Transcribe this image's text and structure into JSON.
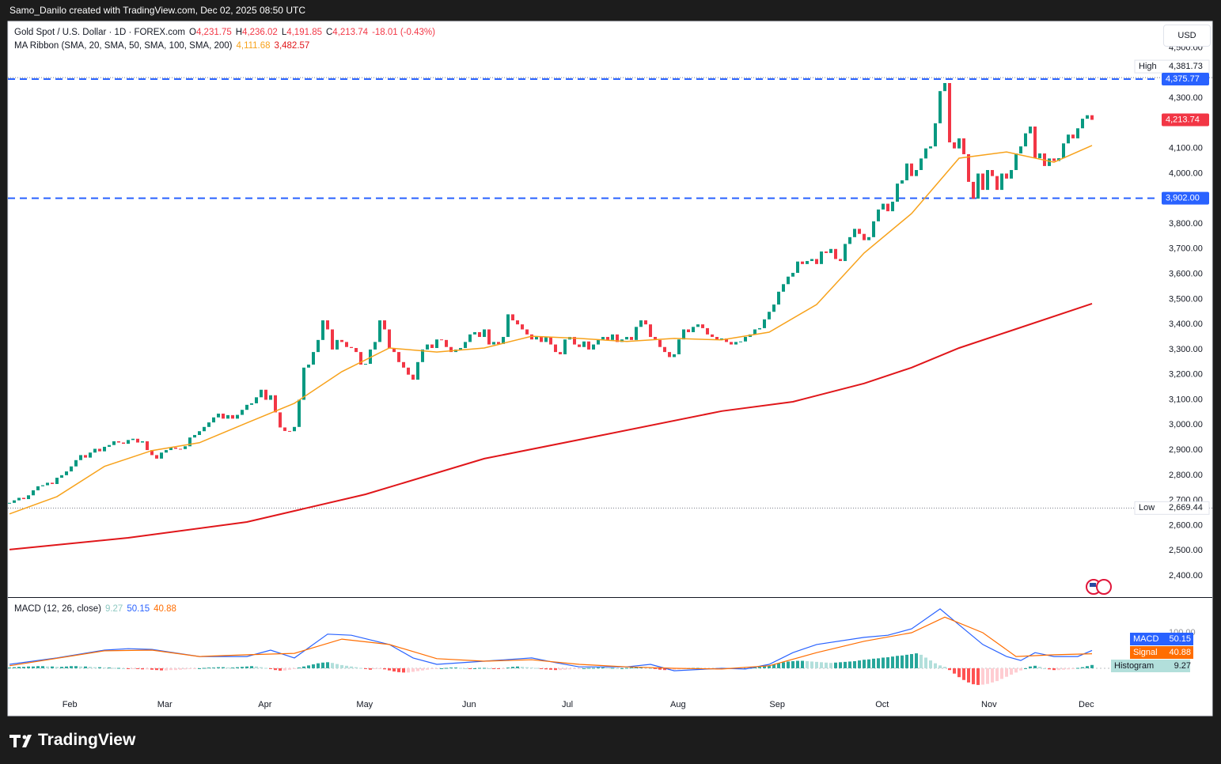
{
  "header": {
    "credit": "Samo_Danilo created with TradingView.com, Dec 02, 2025 08:50 UTC",
    "currency": "USD"
  },
  "footer": {
    "brand": "TradingView"
  },
  "chart_data": [
    {
      "type": "candlestick",
      "title": "Gold Spot / U.S. Dollar · 1D · FOREX.com",
      "ohlc": [
        {
          "key": "O",
          "label": "4,231.75"
        },
        {
          "key": "H",
          "label": "4,236.02"
        },
        {
          "key": "L",
          "label": "4,191.85"
        },
        {
          "key": "C",
          "label": "4,213.74"
        }
      ],
      "change": "-18.01 (-0.43%)",
      "up_color": "#089981",
      "down_color": "#f23645",
      "values": [
        2690,
        2700,
        2710,
        2705,
        2720,
        2740,
        2756,
        2760,
        2770,
        2765,
        2790,
        2800,
        2815,
        2835,
        2860,
        2880,
        2870,
        2890,
        2905,
        2895,
        2913,
        2920,
        2935,
        2930,
        2925,
        2940,
        2945,
        2930,
        2935,
        2900,
        2880,
        2866,
        2890,
        2900,
        2910,
        2905,
        2904,
        2915,
        2950,
        2960,
        2975,
        2992,
        3010,
        3030,
        3045,
        3025,
        3039,
        3025,
        3040,
        3060,
        3080,
        3086,
        3110,
        3140,
        3100,
        3118,
        3050,
        2990,
        2976,
        2975,
        2992,
        3100,
        3228,
        3240,
        3290,
        3338,
        3416,
        3380,
        3300,
        3338,
        3330,
        3310,
        3306,
        3290,
        3240,
        3243,
        3300,
        3330,
        3416,
        3380,
        3306,
        3290,
        3250,
        3228,
        3200,
        3180,
        3250,
        3300,
        3320,
        3306,
        3340,
        3338,
        3310,
        3290,
        3300,
        3306,
        3330,
        3360,
        3369,
        3350,
        3380,
        3320,
        3330,
        3322,
        3350,
        3440,
        3416,
        3400,
        3380,
        3360,
        3340,
        3353,
        3330,
        3350,
        3320,
        3290,
        3281,
        3340,
        3350,
        3320,
        3310,
        3332,
        3300,
        3320,
        3340,
        3350,
        3338,
        3360,
        3330,
        3340,
        3350,
        3338,
        3390,
        3416,
        3400,
        3350,
        3338,
        3310,
        3290,
        3270,
        3281,
        3340,
        3380,
        3369,
        3390,
        3400,
        3385,
        3360,
        3350,
        3340,
        3344,
        3330,
        3320,
        3330,
        3332,
        3350,
        3360,
        3380,
        3385,
        3420,
        3450,
        3479,
        3530,
        3560,
        3590,
        3605,
        3650,
        3640,
        3652,
        3660,
        3640,
        3690,
        3684,
        3700,
        3660,
        3652,
        3720,
        3747,
        3780,
        3760,
        3735,
        3747,
        3810,
        3857,
        3880,
        3850,
        3888,
        3960,
        3973,
        4040,
        3990,
        4014,
        4060,
        4100,
        4108,
        4200,
        4328,
        4360,
        4124,
        4100,
        4140,
        4077,
        3967,
        3900,
        4000,
        3935,
        4014,
        3990,
        3935,
        4000,
        3980,
        4014,
        4080,
        4108,
        4160,
        4187,
        4061,
        4080,
        4030,
        4060,
        4050,
        4061,
        4120,
        4155,
        4140,
        4180,
        4218,
        4232,
        4213.74
      ],
      "ylim": [
        2315,
        4596
      ],
      "yticks": [
        {
          "value": 2400,
          "label": "2,400.00"
        },
        {
          "value": 2500,
          "label": "2,500.00"
        },
        {
          "value": 2600,
          "label": "2,600.00"
        },
        {
          "value": 2700,
          "label": "2,700.00"
        },
        {
          "value": 2800,
          "label": "2,800.00"
        },
        {
          "value": 2900,
          "label": "2,900.00"
        },
        {
          "value": 3000,
          "label": "3,000.00"
        },
        {
          "value": 3100,
          "label": "3,100.00"
        },
        {
          "value": 3200,
          "label": "3,200.00"
        },
        {
          "value": 3300,
          "label": "3,300.00"
        },
        {
          "value": 3400,
          "label": "3,400.00"
        },
        {
          "value": 3500,
          "label": "3,500.00"
        },
        {
          "value": 3600,
          "label": "3,600.00"
        },
        {
          "value": 3700,
          "label": "3,700.00"
        },
        {
          "value": 3800,
          "label": "3,800.00"
        },
        {
          "value": 4000,
          "label": "4,000.00"
        },
        {
          "value": 4100,
          "label": "4,100.00"
        },
        {
          "value": 4300,
          "label": "4,300.00"
        },
        {
          "value": 4500,
          "label": "4,500.00"
        }
      ],
      "indicator": {
        "title": "MA Ribbon (SMA, 20, SMA, 50, SMA, 100, SMA, 200)",
        "lines": [
          {
            "color": "#f7a21b",
            "value_label": "4,111.68",
            "x": [
              0,
              10,
              20,
              30,
              40,
              50,
              60,
              70,
              80,
              90,
              100,
              110,
              120,
              130,
              140,
              150,
              160,
              170,
              180,
              190,
              200,
              210,
              220,
              228
            ],
            "values": [
              2646,
              2715,
              2835,
              2898,
              2929,
              3008,
              3086,
              3212,
              3306,
              3290,
              3306,
              3353,
              3344,
              3332,
              3344,
              3338,
              3369,
              3479,
              3684,
              3841,
              4061,
              4086,
              4045,
              4111.68
            ]
          },
          {
            "color": "#e0161a",
            "value_label": "3,482.57",
            "x": [
              0,
              25,
              50,
              75,
              100,
              125,
              150,
              165,
              180,
              190,
              200,
              210,
              228
            ],
            "values": [
              2504,
              2551,
              2614,
              2724,
              2866,
              2960,
              3055,
              3092,
              3165,
              3228,
              3306,
              3369,
              3482.57
            ]
          }
        ]
      },
      "levels": [
        {
          "value": 4375.77,
          "label": "4,375.77",
          "color": "#2962ff"
        },
        {
          "value": 3902,
          "label": "3,902.00",
          "color": "#2962ff"
        }
      ],
      "last_price": {
        "value": 4213.74,
        "label": "4,213.74",
        "color": "#f23645"
      },
      "extremes": [
        {
          "name": "High",
          "value": 4381.73,
          "label": "4,381.73"
        },
        {
          "name": "Low",
          "value": 2669.44,
          "label": "2,669.44"
        }
      ]
    },
    {
      "type": "macd",
      "title": "MACD (12, 26, close)",
      "ylim": [
        -78,
        198
      ],
      "yticks": [
        {
          "value": 100,
          "label": "100.00"
        }
      ],
      "xticks": [
        {
          "value": 12.7,
          "label": "Feb"
        },
        {
          "value": 32.7,
          "label": "Mar"
        },
        {
          "value": 53.8,
          "label": "Apr"
        },
        {
          "value": 74.8,
          "label": "May"
        },
        {
          "value": 96.8,
          "label": "Jun"
        },
        {
          "value": 117.5,
          "label": "Jul"
        },
        {
          "value": 140.8,
          "label": "Aug"
        },
        {
          "value": 161.7,
          "label": "Sep"
        },
        {
          "value": 183.8,
          "label": "Oct"
        },
        {
          "value": 206.3,
          "label": "Nov"
        },
        {
          "value": 226.8,
          "label": "Dec"
        }
      ],
      "series": [
        {
          "name": "Histogram",
          "color": "#b2dfdb",
          "value_label": "9.27",
          "colors": [
            "#26a69a",
            "#b2dfdb",
            "#ff5252",
            "#ffcdd2"
          ],
          "values": [
            2,
            3,
            4,
            4,
            5,
            5,
            6,
            6,
            5,
            5,
            4,
            4,
            5,
            6,
            6,
            5,
            5,
            4,
            3,
            3,
            2,
            2,
            1,
            1,
            0,
            -1,
            -1,
            -2,
            -3,
            -3,
            -4,
            -5,
            -6,
            -6,
            -5,
            -5,
            -4,
            -3,
            -2,
            -1,
            0,
            1,
            2,
            2,
            3,
            3,
            2,
            2,
            3,
            4,
            5,
            6,
            5,
            3,
            1,
            -2,
            -5,
            -7,
            -6,
            -4,
            -2,
            2,
            5,
            8,
            11,
            14,
            16,
            17,
            15,
            12,
            9,
            7,
            5,
            3,
            1,
            -2,
            -4,
            -2,
            -1,
            -3,
            -6,
            -9,
            -11,
            -12,
            -12,
            -10,
            -8,
            -6,
            -4,
            -2,
            -1,
            0,
            1,
            2,
            2,
            1,
            0,
            -1,
            0,
            1,
            1,
            0,
            -1,
            -2,
            -1,
            2,
            4,
            5,
            4,
            3,
            2,
            1,
            -1,
            -3,
            -4,
            -5,
            -5,
            -4,
            -3,
            -2,
            -1,
            0,
            1,
            1,
            2,
            2,
            1,
            1,
            0,
            0,
            1,
            2,
            3,
            3,
            2,
            0,
            -2,
            -4,
            -5,
            -5,
            -4,
            -3,
            -1,
            0,
            1,
            1,
            0,
            -1,
            -2,
            -3,
            -3,
            -2,
            -2,
            -1,
            -1,
            0,
            1,
            2,
            4,
            6,
            8,
            11,
            14,
            17,
            19,
            20,
            21,
            21,
            20,
            19,
            18,
            17,
            16,
            15,
            16,
            17,
            18,
            19,
            20,
            22,
            24,
            25,
            27,
            28,
            30,
            31,
            33,
            35,
            36,
            38,
            40,
            42,
            38,
            30,
            22,
            14,
            8,
            4,
            -5,
            -15,
            -25,
            -33,
            -40,
            -45,
            -47,
            -46,
            -44,
            -40,
            -36,
            -30,
            -24,
            -18,
            -12,
            -6,
            0,
            5,
            7,
            4,
            0,
            -3,
            -5,
            -5,
            -4,
            -3,
            -1,
            1,
            3,
            6,
            9.27
          ]
        },
        {
          "name": "MACD",
          "color": "#2962ff",
          "value_label": "50.15",
          "x": [
            0,
            10,
            20,
            25,
            30,
            40,
            50,
            55,
            60,
            67,
            72,
            80,
            85,
            90,
            100,
            110,
            115,
            120,
            130,
            135,
            140,
            150,
            155,
            160,
            165,
            170,
            180,
            185,
            190,
            196,
            200,
            205,
            210,
            213,
            216,
            220,
            225,
            228
          ],
          "values": [
            11,
            29,
            51,
            55,
            53,
            33,
            33,
            51,
            29,
            96,
            93,
            67,
            29,
            11,
            20,
            29,
            16,
            4,
            4,
            11,
            -7,
            0,
            -2,
            11,
            44,
            67,
            87,
            93,
            111,
            167,
            122,
            67,
            33,
            22,
            44,
            33,
            33,
            50.15
          ]
        },
        {
          "name": "Signal",
          "color": "#ff6d00",
          "value_label": "40.88",
          "x": [
            0,
            20,
            30,
            40,
            50,
            60,
            70,
            80,
            90,
            100,
            110,
            120,
            130,
            140,
            150,
            160,
            170,
            180,
            190,
            197,
            205,
            212,
            220,
            228
          ],
          "values": [
            7,
            49,
            51,
            33,
            38,
            42,
            82,
            67,
            27,
            20,
            24,
            11,
            4,
            0,
            -2,
            7,
            44,
            76,
            100,
            144,
            100,
            33,
            38,
            40.88
          ]
        }
      ]
    }
  ]
}
